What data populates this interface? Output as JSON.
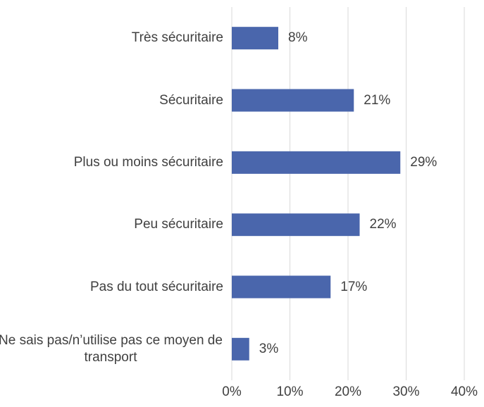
{
  "chart_data": {
    "type": "bar",
    "orientation": "horizontal",
    "categories": [
      "Très sécuritaire",
      "Sécuritaire",
      "Plus ou moins sécuritaire",
      "Peu sécuritaire",
      "Pas du tout sécuritaire",
      "Ne sais pas/n’utilise pas ce moyen de transport"
    ],
    "values": [
      8,
      21,
      29,
      22,
      17,
      3
    ],
    "value_labels": [
      "8%",
      "21%",
      "29%",
      "22%",
      "17%",
      "3%"
    ],
    "color": "#4a66ac",
    "xlim": [
      0,
      40
    ],
    "xticks": [
      {
        "value": 0,
        "label": "0%"
      },
      {
        "value": 10,
        "label": "10%"
      },
      {
        "value": 20,
        "label": "20%"
      },
      {
        "value": 30,
        "label": "30%"
      },
      {
        "value": 40,
        "label": "40%"
      }
    ],
    "grid": true
  }
}
